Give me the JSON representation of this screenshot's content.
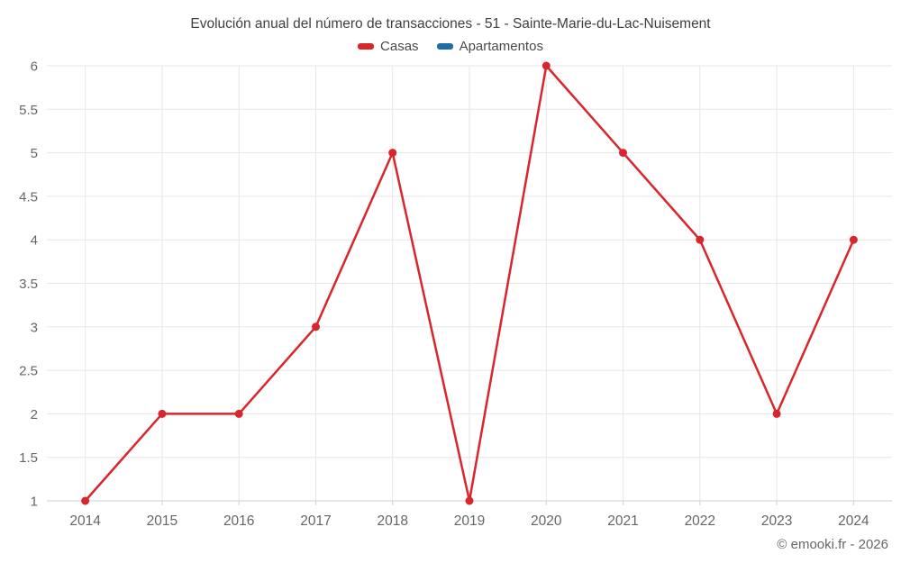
{
  "footer": {
    "copyright": "© emooki.fr - 2026"
  },
  "colors": {
    "grid": "#e6e6e6",
    "axis": "#cfcfcf",
    "tick_text": "#666666",
    "title_text": "#3f3f3f",
    "casas": "#d8262c",
    "apartamentos": "#1c6ea4"
  },
  "chart_data": {
    "type": "line",
    "title": "Evolución anual del número de transacciones - 51 - Sainte-Marie-du-Lac-Nuisement",
    "categories": [
      "2014",
      "2015",
      "2016",
      "2017",
      "2018",
      "2019",
      "2020",
      "2021",
      "2022",
      "2023",
      "2024"
    ],
    "series": [
      {
        "name": "Casas",
        "color": "#d8262c",
        "values": [
          1,
          2,
          2,
          3,
          5,
          1,
          6,
          5,
          4,
          2,
          4
        ]
      },
      {
        "name": "Apartamentos",
        "color": "#1c6ea4",
        "values": []
      }
    ],
    "xlabel": "",
    "ylabel": "",
    "ylim": [
      1,
      6
    ],
    "yticks": [
      1,
      1.5,
      2,
      2.5,
      3,
      3.5,
      4,
      4.5,
      5,
      5.5,
      6
    ],
    "grid": true,
    "legend_position": "top"
  }
}
